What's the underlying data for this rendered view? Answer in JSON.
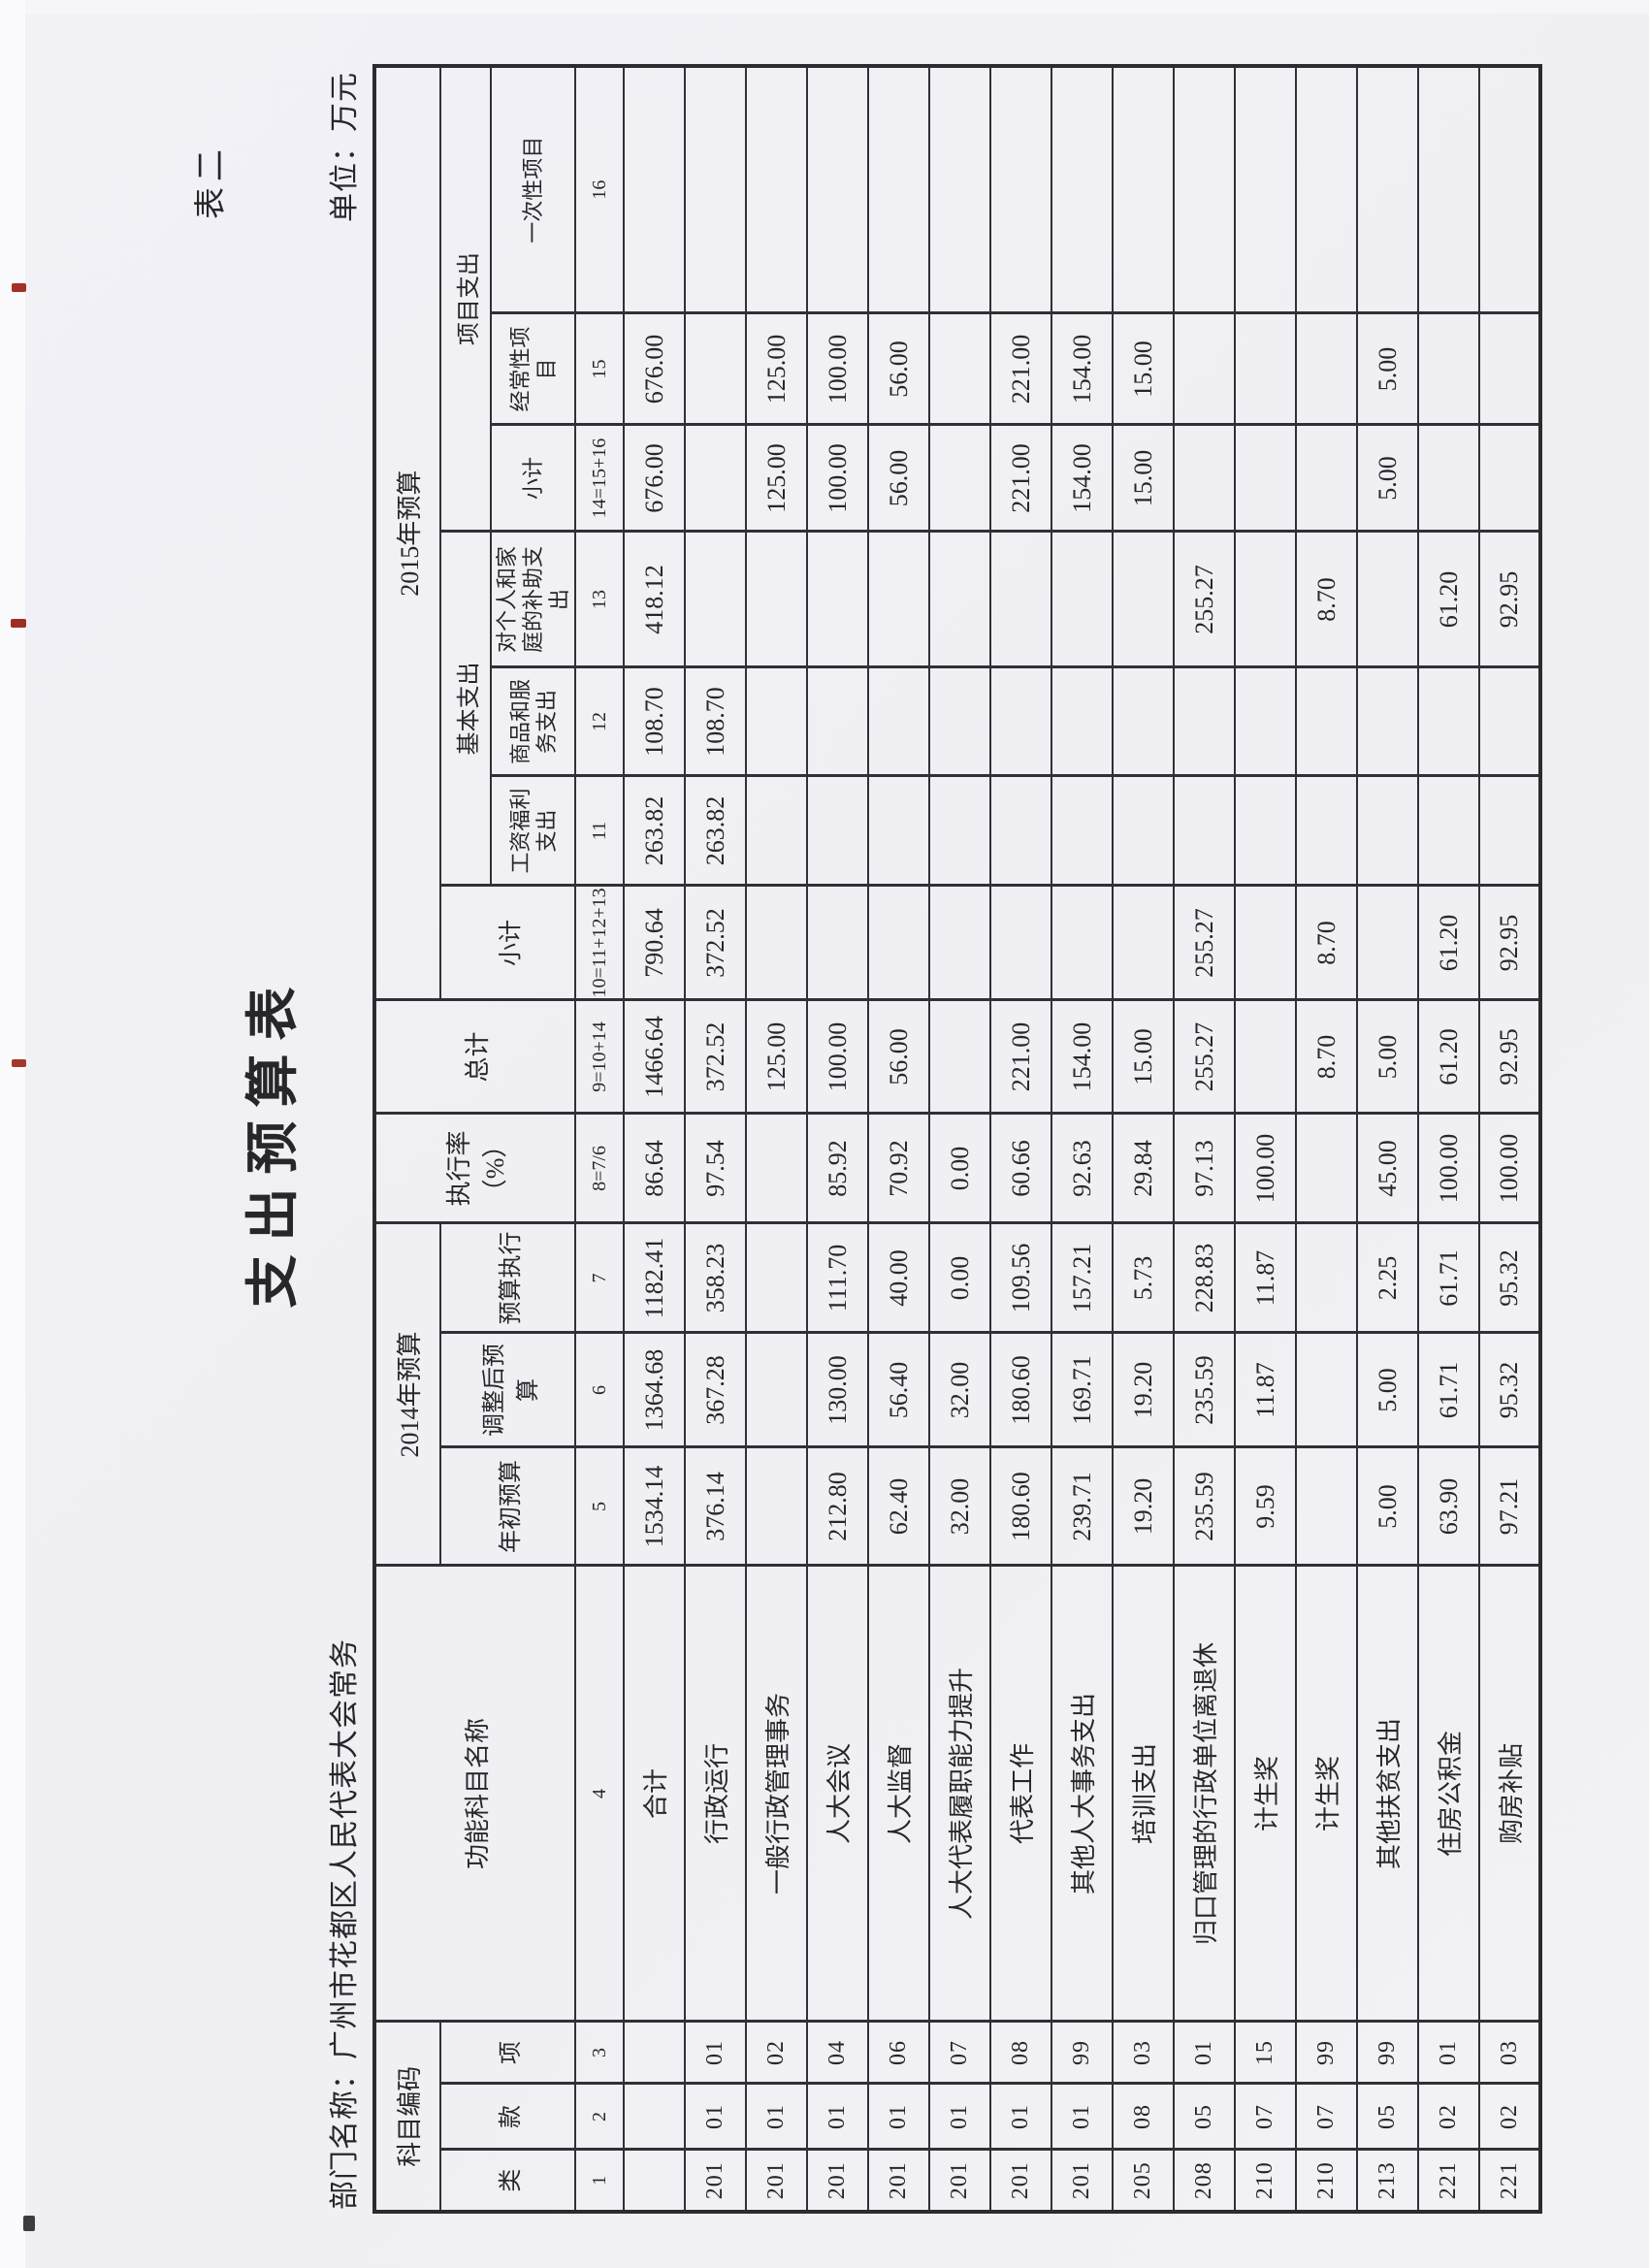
{
  "page": {
    "tag": "表二",
    "title": "支出预算表",
    "dept_label": "部门名称：广州市花都区人民代表大会常务",
    "unit_label": "单位：万元"
  },
  "table": {
    "header": {
      "subject_code": "科目编码",
      "cls": "类",
      "sec": "款",
      "itm": "项",
      "name": "功能科目名称",
      "y2014": "2014年预算",
      "initial": "年初预算",
      "adjusted": "调整后预算",
      "executed": "预算执行",
      "exec_rate": "执行率\n（%）",
      "total": "总计",
      "y2015": "2015年预算",
      "subtotal10": "小计",
      "basic": "基本支出",
      "wage": "工资福利支出",
      "goods": "商品和服务支出",
      "personal": "对个人和家庭的补助支出",
      "project": "项目支出",
      "subtotal14": "小计",
      "recurrent": "经常性项目",
      "onetime": "一次性项目",
      "col_numbers": [
        "1",
        "2",
        "3",
        "4",
        "5",
        "6",
        "7",
        "8=7/6",
        "9=10+14",
        "10=11+12+13",
        "11",
        "12",
        "13",
        "14=15+16",
        "15",
        "16"
      ]
    },
    "rows": [
      {
        "cells": [
          "",
          "",
          "",
          "合计",
          "1534.14",
          "1364.68",
          "1182.41",
          "86.64",
          "1466.64",
          "790.64",
          "263.82",
          "108.70",
          "418.12",
          "676.00",
          "676.00",
          ""
        ]
      },
      {
        "cells": [
          "201",
          "01",
          "01",
          "行政运行",
          "376.14",
          "367.28",
          "358.23",
          "97.54",
          "372.52",
          "372.52",
          "263.82",
          "108.70",
          "",
          "",
          "",
          ""
        ]
      },
      {
        "cells": [
          "201",
          "01",
          "02",
          "一般行政管理事务",
          "",
          "",
          "",
          "",
          "125.00",
          "",
          "",
          "",
          "",
          "125.00",
          "125.00",
          ""
        ]
      },
      {
        "cells": [
          "201",
          "01",
          "04",
          "人大会议",
          "212.80",
          "130.00",
          "111.70",
          "85.92",
          "100.00",
          "",
          "",
          "",
          "",
          "100.00",
          "100.00",
          ""
        ]
      },
      {
        "cells": [
          "201",
          "01",
          "06",
          "人大监督",
          "62.40",
          "56.40",
          "40.00",
          "70.92",
          "56.00",
          "",
          "",
          "",
          "",
          "56.00",
          "56.00",
          ""
        ]
      },
      {
        "cells": [
          "201",
          "01",
          "07",
          "人大代表履职能力提升",
          "32.00",
          "32.00",
          "0.00",
          "0.00",
          "",
          "",
          "",
          "",
          "",
          "",
          "",
          ""
        ]
      },
      {
        "cells": [
          "201",
          "01",
          "08",
          "代表工作",
          "180.60",
          "180.60",
          "109.56",
          "60.66",
          "221.00",
          "",
          "",
          "",
          "",
          "221.00",
          "221.00",
          ""
        ]
      },
      {
        "cells": [
          "201",
          "01",
          "99",
          "其他人大事务支出",
          "239.71",
          "169.71",
          "157.21",
          "92.63",
          "154.00",
          "",
          "",
          "",
          "",
          "154.00",
          "154.00",
          ""
        ]
      },
      {
        "cells": [
          "205",
          "08",
          "03",
          "培训支出",
          "19.20",
          "19.20",
          "5.73",
          "29.84",
          "15.00",
          "",
          "",
          "",
          "",
          "15.00",
          "15.00",
          ""
        ]
      },
      {
        "cells": [
          "208",
          "05",
          "01",
          "归口管理的行政单位离退休",
          "235.59",
          "235.59",
          "228.83",
          "97.13",
          "255.27",
          "255.27",
          "",
          "",
          "255.27",
          "",
          "",
          ""
        ]
      },
      {
        "cells": [
          "210",
          "07",
          "15",
          "计生奖",
          "9.59",
          "11.87",
          "11.87",
          "100.00",
          "",
          "",
          "",
          "",
          "",
          "",
          "",
          ""
        ]
      },
      {
        "cells": [
          "210",
          "07",
          "99",
          "计生奖",
          "",
          "",
          "",
          "",
          "8.70",
          "8.70",
          "",
          "",
          "8.70",
          "",
          "",
          ""
        ]
      },
      {
        "cells": [
          "213",
          "05",
          "99",
          "其他扶贫支出",
          "5.00",
          "5.00",
          "2.25",
          "45.00",
          "5.00",
          "",
          "",
          "",
          "",
          "5.00",
          "5.00",
          ""
        ]
      },
      {
        "cells": [
          "221",
          "02",
          "01",
          "住房公积金",
          "63.90",
          "61.71",
          "61.71",
          "100.00",
          "61.20",
          "61.20",
          "",
          "",
          "61.20",
          "",
          "",
          ""
        ]
      },
      {
        "cells": [
          "221",
          "02",
          "03",
          "购房补贴",
          "97.21",
          "95.32",
          "95.32",
          "100.00",
          "92.95",
          "92.95",
          "",
          "",
          "92.95",
          "",
          "",
          ""
        ]
      }
    ]
  }
}
